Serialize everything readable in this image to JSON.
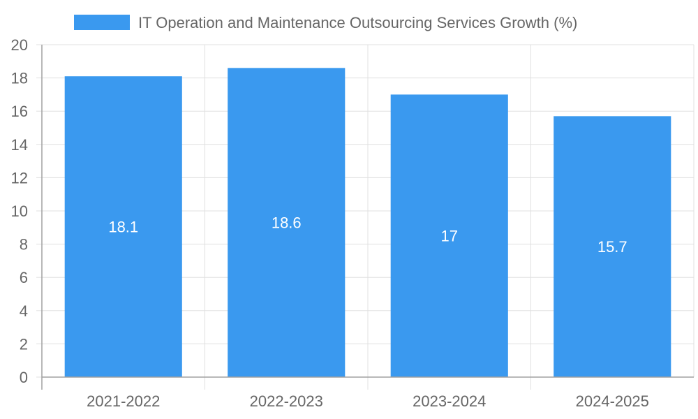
{
  "chart_data": {
    "type": "bar",
    "categories": [
      "2021-2022",
      "2022-2023",
      "2023-2024",
      "2024-2025"
    ],
    "series": [
      {
        "name": "IT Operation and Maintenance Outsourcing Services Growth (%)",
        "values": [
          18.1,
          18.6,
          17,
          15.7
        ],
        "color": "#3a99ef"
      }
    ],
    "data_labels": [
      "18.1",
      "18.6",
      "17",
      "15.7"
    ],
    "y_ticks": [
      "0",
      "2",
      "4",
      "6",
      "8",
      "10",
      "12",
      "14",
      "16",
      "18",
      "20"
    ],
    "ylim": [
      0,
      20
    ],
    "grid": true,
    "legend": "top-center",
    "colors": {
      "grid": "#e0e0e0",
      "axis": "#a0a0a0",
      "tick_text": "#666666",
      "bar_label_text": "#ffffff"
    }
  }
}
